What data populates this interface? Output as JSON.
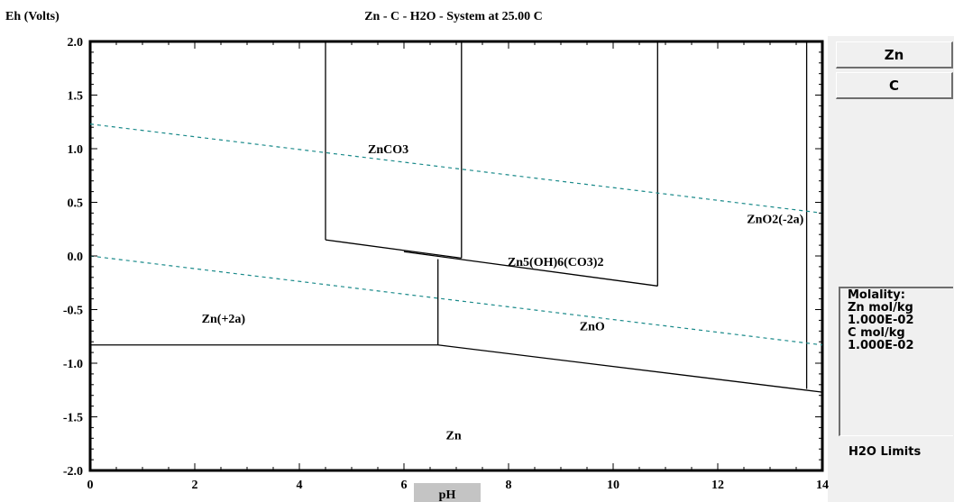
{
  "window": {
    "title": "Zn - C - H2O - System at 25.00 C"
  },
  "sidebar": {
    "buttons": [
      {
        "label": "Zn"
      },
      {
        "label": "C"
      }
    ],
    "molality": {
      "heading": "Molality:",
      "lines": [
        "Zn mol/kg",
        "1.000E-02",
        "C mol/kg",
        "1.000E-02"
      ]
    },
    "h2o_limits_label": "H2O Limits"
  },
  "colors": {
    "boundary": "#000000",
    "water_limits": "#1a8a8a",
    "panel": "#f0f0f0",
    "ph_tab": "#c4c4c4"
  },
  "chart_data": {
    "type": "line",
    "title": "Zn - C - H2O - System at 25.00 C",
    "xlabel": "pH",
    "ylabel": "Eh (Volts)",
    "xlim": [
      0,
      14
    ],
    "ylim": [
      -2.0,
      2.0
    ],
    "x_ticks": [
      0,
      2,
      4,
      6,
      8,
      10,
      12,
      14
    ],
    "y_ticks": [
      2.0,
      1.5,
      1.0,
      0.5,
      0.0,
      -0.5,
      -1.0,
      -1.5,
      -2.0
    ],
    "y_tick_labels": [
      "2.0",
      "1.5",
      "1.0",
      "0.5",
      "0.0",
      "-0.5",
      "-1.0",
      "-1.5",
      "-2.0"
    ],
    "grid": false,
    "boundaries": [
      {
        "x": [
          4.5,
          4.5
        ],
        "y": [
          2.0,
          0.15
        ]
      },
      {
        "x": [
          7.1,
          7.1
        ],
        "y": [
          2.0,
          -0.02
        ]
      },
      {
        "x": [
          4.5,
          7.1
        ],
        "y": [
          0.15,
          -0.02
        ]
      },
      {
        "x": [
          6.0,
          10.85
        ],
        "y": [
          0.04,
          -0.28
        ]
      },
      {
        "x": [
          10.85,
          10.85
        ],
        "y": [
          2.0,
          -0.28
        ]
      },
      {
        "x": [
          6.65,
          6.65
        ],
        "y": [
          -0.03,
          -0.83
        ]
      },
      {
        "x": [
          0,
          6.65
        ],
        "y": [
          -0.83,
          -0.83
        ]
      },
      {
        "x": [
          6.65,
          14.0
        ],
        "y": [
          -0.83,
          -1.27
        ]
      },
      {
        "x": [
          13.7,
          13.7
        ],
        "y": [
          2.0,
          -1.24
        ]
      }
    ],
    "water_limits": [
      {
        "x": [
          0,
          14
        ],
        "y": [
          1.23,
          0.4
        ]
      },
      {
        "x": [
          0,
          14
        ],
        "y": [
          0.0,
          -0.83
        ]
      }
    ],
    "region_labels": [
      {
        "text": "ZnCO3",
        "x": 5.7,
        "y": 1.0
      },
      {
        "text": "ZnO2(-2a)",
        "x": 13.1,
        "y": 0.35
      },
      {
        "text": "Zn5(OH)6(CO3)2",
        "x": 8.9,
        "y": -0.05
      },
      {
        "text": "Zn(+2a)",
        "x": 2.55,
        "y": -0.58
      },
      {
        "text": "ZnO",
        "x": 9.6,
        "y": -0.65
      },
      {
        "text": "Zn",
        "x": 6.95,
        "y": -1.67
      }
    ]
  }
}
